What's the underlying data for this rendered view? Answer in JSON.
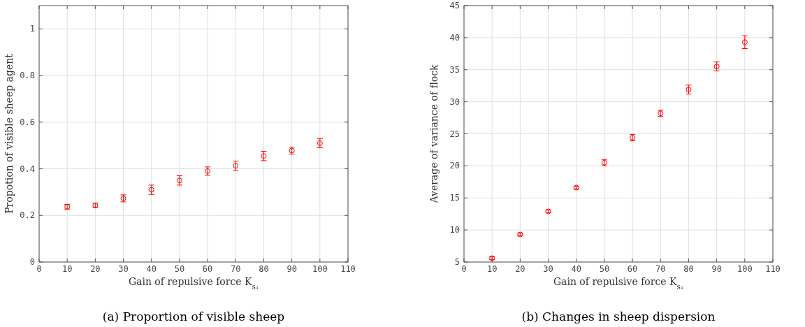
{
  "chart_data": [
    {
      "type": "scatter",
      "title": "(a) Proportion of visible sheep",
      "xlabel": "Gain of repulsive force K$_{s₁}$",
      "ylabel": "Propotion of visible sheep agent",
      "marker": "circle",
      "grid": true,
      "xlim": [
        0,
        110
      ],
      "xticks": [
        0,
        10,
        20,
        30,
        40,
        50,
        60,
        70,
        80,
        90,
        100,
        110
      ],
      "ylim": [
        0,
        1.1
      ],
      "yticks": [
        0,
        0.2,
        0.4,
        0.6,
        0.8,
        1
      ],
      "series": [
        {
          "color": "#ff0000",
          "x": [
            10,
            20,
            30,
            40,
            50,
            60,
            70,
            80,
            90,
            100
          ],
          "values": [
            0.237,
            0.243,
            0.273,
            0.31,
            0.35,
            0.39,
            0.413,
            0.455,
            0.478,
            0.51
          ],
          "errors": [
            0.01,
            0.01,
            0.015,
            0.02,
            0.02,
            0.018,
            0.02,
            0.02,
            0.015,
            0.02
          ]
        }
      ]
    },
    {
      "type": "scatter",
      "title": "(b) Changes in sheep dispersion",
      "xlabel": "Gain of repulsive force K$_{s₁}$",
      "ylabel": "Average of variance of flock",
      "marker": "circle",
      "grid": true,
      "xlim": [
        0,
        110
      ],
      "xticks": [
        0,
        10,
        20,
        30,
        40,
        50,
        60,
        70,
        80,
        90,
        100,
        110
      ],
      "ylim": [
        5,
        45
      ],
      "yticks": [
        5,
        10,
        15,
        20,
        25,
        30,
        35,
        40,
        45
      ],
      "series": [
        {
          "color": "#ff0000",
          "x": [
            10,
            20,
            30,
            40,
            50,
            60,
            70,
            80,
            90,
            100
          ],
          "values": [
            5.6,
            9.3,
            12.9,
            16.6,
            20.5,
            24.4,
            28.2,
            31.9,
            35.5,
            39.3
          ],
          "errors": [
            0.2,
            0.2,
            0.2,
            0.2,
            0.5,
            0.5,
            0.5,
            0.7,
            0.7,
            1.0
          ]
        }
      ]
    }
  ]
}
